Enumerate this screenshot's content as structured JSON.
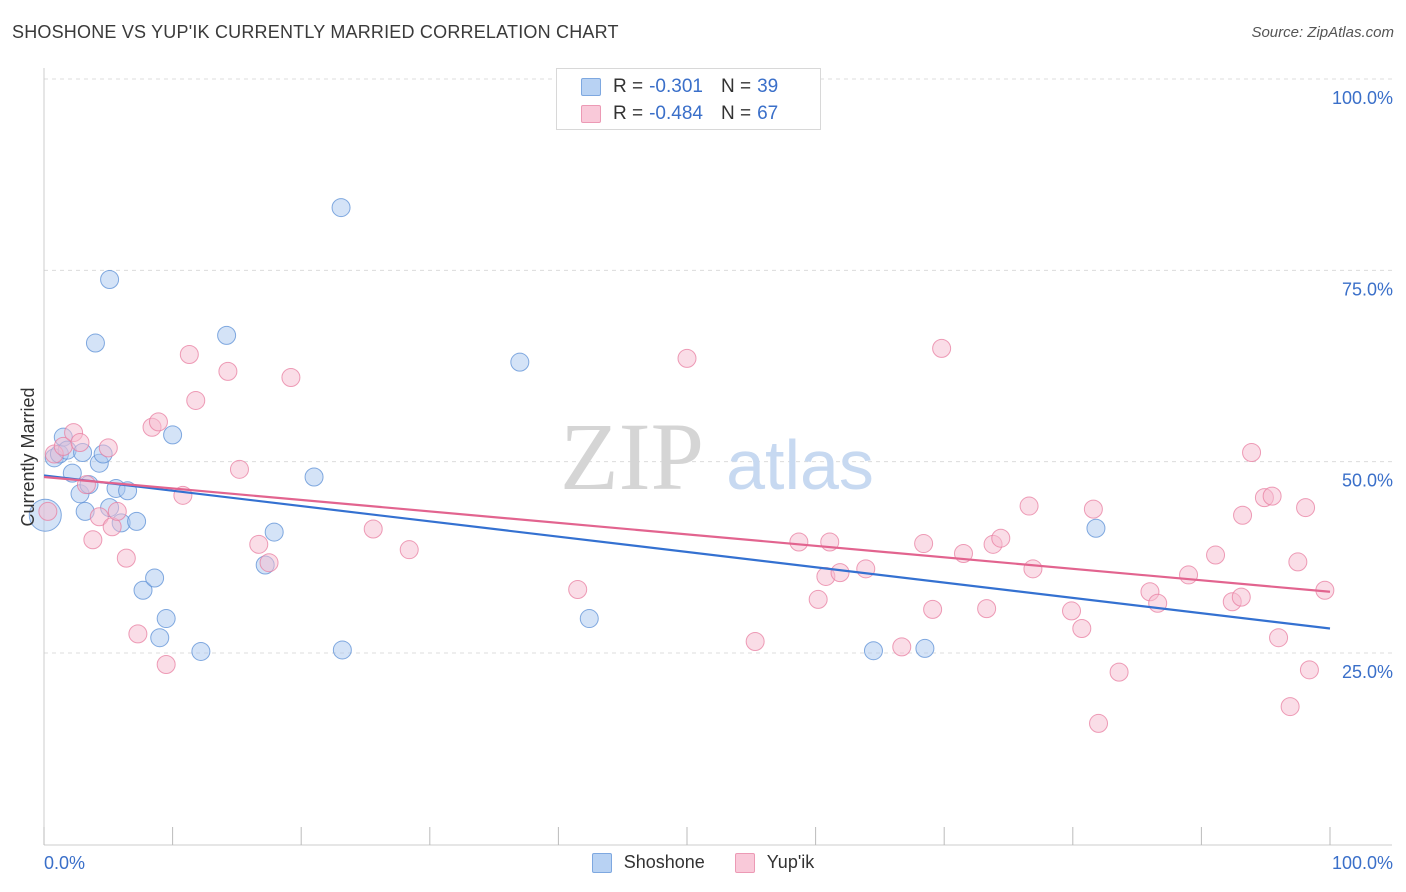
{
  "title": "SHOSHONE VS YUP'IK CURRENTLY MARRIED CORRELATION CHART",
  "source": "Source: ZipAtlas.com",
  "watermark": {
    "zip": "ZIP",
    "atlas": "atlas"
  },
  "legend": {
    "rows": [
      {
        "r_label": "R =",
        "r_value": "-0.301",
        "n_label": "N =",
        "n_value": "39"
      },
      {
        "r_label": "R =",
        "r_value": "-0.484",
        "n_label": "N =",
        "n_value": "67"
      }
    ]
  },
  "colors": {
    "shoshone_fill": "#a9c8ef",
    "shoshone_stroke": "#5b8fd6",
    "shoshone_line": "#3471d1",
    "yupik_fill": "#f6bcd0",
    "yupik_stroke": "#e87ea0",
    "yupik_line": "#e2648f",
    "tick_label": "#3a6fc9",
    "grid": "#dcdcdc"
  },
  "chart_data": {
    "type": "scatter",
    "title": "SHOSHONE VS YUP'IK CURRENTLY MARRIED CORRELATION CHART",
    "xlabel": "",
    "ylabel": "Currently Married",
    "xlim": [
      0,
      100
    ],
    "ylim": [
      0,
      105
    ],
    "x_tick_labels": [
      "0.0%",
      "100.0%"
    ],
    "y_ticks": [
      25,
      50,
      75,
      100
    ],
    "y_tick_labels": [
      "25.0%",
      "50.0%",
      "75.0%",
      "100.0%"
    ],
    "series": [
      {
        "name": "Shoshone",
        "r": -0.301,
        "n": 39,
        "trend": {
          "x": [
            0,
            100
          ],
          "y": [
            48.2,
            28.2
          ]
        },
        "points": [
          [
            0.1,
            43.0
          ],
          [
            0.8,
            50.5
          ],
          [
            1.2,
            51.0
          ],
          [
            1.5,
            53.2
          ],
          [
            1.8,
            51.5
          ],
          [
            2.2,
            48.5
          ],
          [
            2.8,
            45.8
          ],
          [
            3.0,
            51.2
          ],
          [
            3.2,
            43.5
          ],
          [
            3.5,
            47.0
          ],
          [
            4.0,
            65.5
          ],
          [
            4.3,
            49.8
          ],
          [
            4.6,
            51.0
          ],
          [
            5.1,
            44.0
          ],
          [
            5.6,
            46.5
          ],
          [
            6.0,
            42.0
          ],
          [
            6.5,
            46.2
          ],
          [
            7.2,
            42.2
          ],
          [
            5.1,
            73.8
          ],
          [
            7.7,
            33.2
          ],
          [
            8.6,
            34.8
          ],
          [
            9.0,
            27.0
          ],
          [
            9.5,
            29.5
          ],
          [
            10.0,
            53.5
          ],
          [
            12.2,
            25.2
          ],
          [
            14.2,
            66.5
          ],
          [
            17.2,
            36.5
          ],
          [
            17.9,
            40.8
          ],
          [
            21.0,
            48.0
          ],
          [
            23.1,
            83.2
          ],
          [
            23.2,
            25.4
          ],
          [
            37.0,
            63.0
          ],
          [
            42.4,
            29.5
          ],
          [
            64.5,
            25.3
          ],
          [
            68.5,
            25.6
          ],
          [
            81.8,
            41.3
          ]
        ]
      },
      {
        "name": "Yup'ik",
        "r": -0.484,
        "n": 67,
        "trend": {
          "x": [
            0,
            100
          ],
          "y": [
            48.0,
            33.0
          ]
        },
        "points": [
          [
            0.3,
            43.5
          ],
          [
            0.8,
            51.0
          ],
          [
            1.5,
            52.0
          ],
          [
            2.3,
            53.8
          ],
          [
            2.8,
            52.5
          ],
          [
            3.3,
            47.0
          ],
          [
            3.8,
            39.8
          ],
          [
            4.3,
            42.8
          ],
          [
            5.0,
            51.8
          ],
          [
            5.3,
            41.5
          ],
          [
            5.7,
            43.5
          ],
          [
            6.4,
            37.4
          ],
          [
            7.3,
            27.5
          ],
          [
            8.4,
            54.5
          ],
          [
            8.9,
            55.2
          ],
          [
            9.5,
            23.5
          ],
          [
            10.8,
            45.6
          ],
          [
            11.3,
            64.0
          ],
          [
            11.8,
            58.0
          ],
          [
            14.3,
            61.8
          ],
          [
            15.2,
            49.0
          ],
          [
            16.7,
            39.2
          ],
          [
            17.5,
            36.8
          ],
          [
            19.2,
            61.0
          ],
          [
            25.6,
            41.2
          ],
          [
            28.4,
            38.5
          ],
          [
            41.5,
            33.3
          ],
          [
            50.0,
            63.5
          ],
          [
            55.3,
            26.5
          ],
          [
            58.7,
            39.5
          ],
          [
            60.2,
            32.0
          ],
          [
            60.8,
            35.0
          ],
          [
            61.1,
            39.5
          ],
          [
            61.9,
            35.5
          ],
          [
            63.9,
            36.0
          ],
          [
            66.7,
            25.8
          ],
          [
            68.4,
            39.3
          ],
          [
            69.1,
            30.7
          ],
          [
            69.8,
            64.8
          ],
          [
            71.5,
            38.0
          ],
          [
            73.3,
            30.8
          ],
          [
            73.8,
            39.2
          ],
          [
            74.4,
            40.0
          ],
          [
            76.6,
            44.2
          ],
          [
            76.9,
            36.0
          ],
          [
            79.9,
            30.5
          ],
          [
            80.7,
            28.2
          ],
          [
            81.6,
            43.8
          ],
          [
            82.0,
            15.8
          ],
          [
            83.6,
            22.5
          ],
          [
            86.0,
            33.0
          ],
          [
            86.6,
            31.5
          ],
          [
            89.0,
            35.2
          ],
          [
            91.1,
            37.8
          ],
          [
            92.4,
            31.7
          ],
          [
            93.1,
            32.3
          ],
          [
            93.9,
            51.2
          ],
          [
            93.2,
            43.0
          ],
          [
            94.9,
            45.3
          ],
          [
            95.5,
            45.5
          ],
          [
            96.0,
            27.0
          ],
          [
            96.9,
            18.0
          ],
          [
            97.5,
            36.9
          ],
          [
            98.1,
            44.0
          ],
          [
            98.4,
            22.8
          ],
          [
            99.6,
            33.2
          ]
        ]
      }
    ]
  }
}
